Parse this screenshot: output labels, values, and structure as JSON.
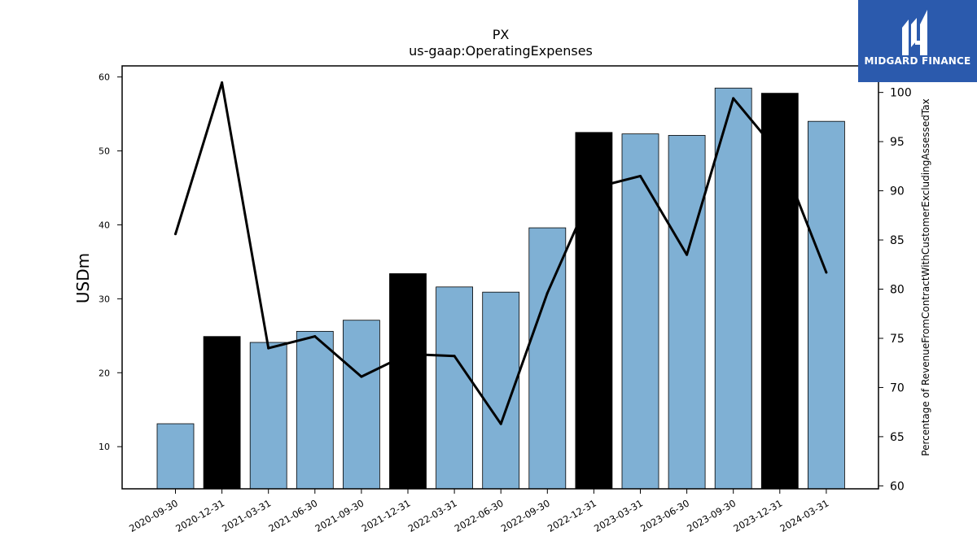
{
  "logo": {
    "text": "MIDGARD FINANCE",
    "background": "#2b5aad"
  },
  "chart_data": {
    "type": "bar",
    "title": "PX",
    "subtitle": "us-gaap:OperatingExpenses",
    "ylabel": "USDm",
    "y2label": "Percentage of RevenueFromContractWithCustomerExcludingAssessedTax",
    "ylim": [
      4.3,
      61.5
    ],
    "y2lim": [
      59.7,
      102.7
    ],
    "yticks": [
      10,
      20,
      30,
      40,
      50,
      60
    ],
    "y2ticks": [
      60,
      65,
      70,
      75,
      80,
      85,
      90,
      95,
      100
    ],
    "categories": [
      "2020-09-30",
      "2020-12-31",
      "2021-03-31",
      "2021-06-30",
      "2021-09-30",
      "2021-12-31",
      "2022-03-31",
      "2022-06-30",
      "2022-09-30",
      "2022-12-31",
      "2023-03-31",
      "2023-06-30",
      "2023-09-30",
      "2023-12-31",
      "2024-03-31"
    ],
    "series": [
      {
        "type": "bar",
        "axis": "left",
        "values": [
          13.1,
          24.9,
          24.1,
          25.6,
          27.1,
          33.4,
          31.6,
          30.9,
          39.6,
          52.5,
          52.3,
          52.1,
          58.5,
          57.8,
          54.0
        ]
      },
      {
        "type": "line",
        "axis": "right",
        "values": [
          85.6,
          101.0,
          74.0,
          75.2,
          71.1,
          73.4,
          73.2,
          66.3,
          79.6,
          90.3,
          91.5,
          83.5,
          99.4,
          93.7,
          81.7
        ]
      }
    ],
    "bar_colors": {
      "quarter": "#7fb0d4",
      "year_end": "#000000"
    },
    "year_end_flags": [
      false,
      true,
      false,
      false,
      false,
      true,
      false,
      false,
      false,
      true,
      false,
      false,
      false,
      true,
      false
    ],
    "line_color": "#000000",
    "grid": false,
    "legend": "none"
  }
}
